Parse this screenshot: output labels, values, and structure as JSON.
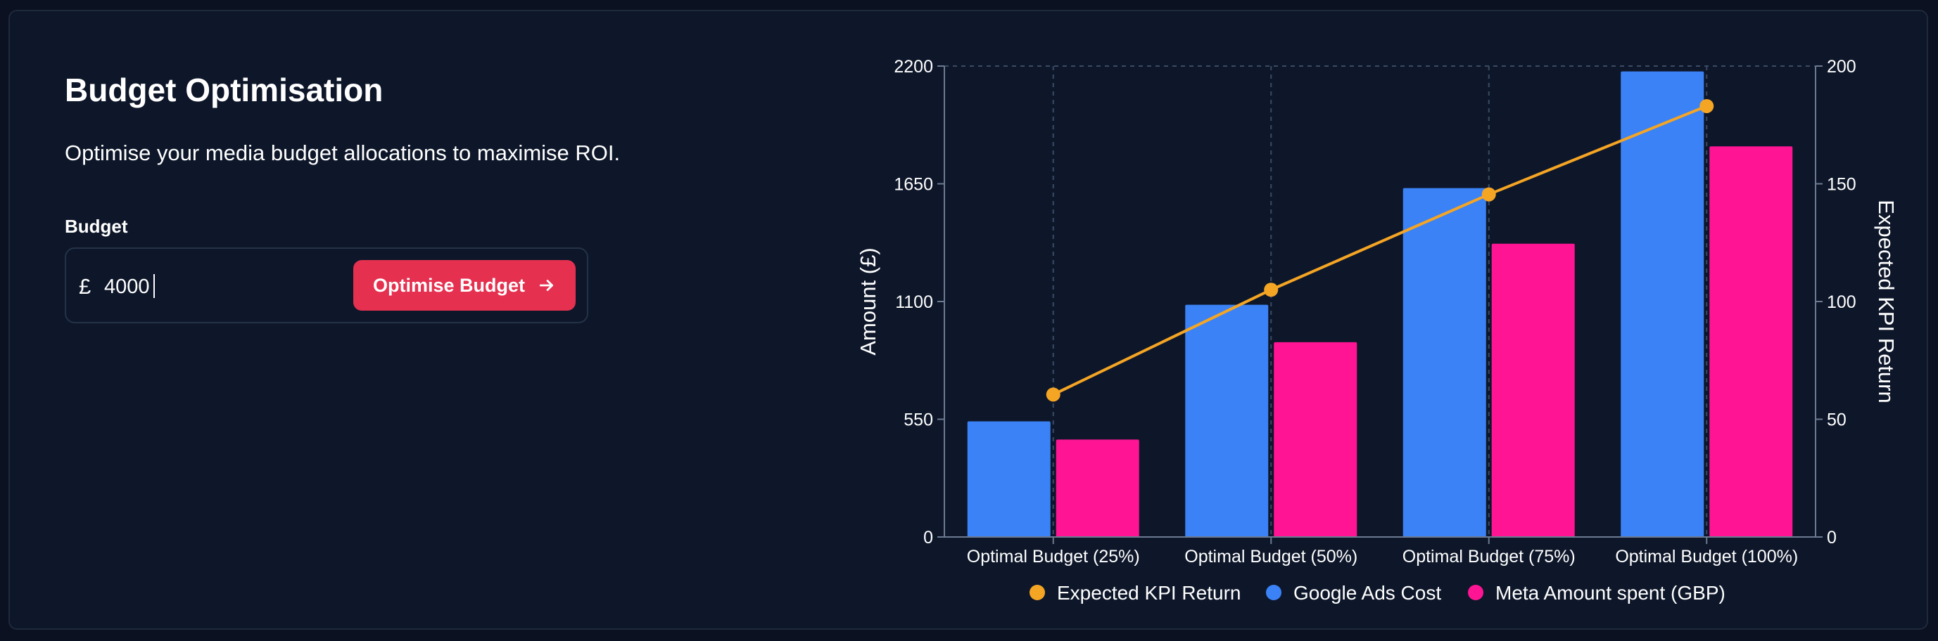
{
  "header": {
    "title": "Budget Optimisation",
    "subtitle": "Optimise your media budget allocations to maximise ROI."
  },
  "budget_form": {
    "label": "Budget",
    "currency_symbol": "£",
    "value": "4000",
    "button_label": "Optimise Budget",
    "button_icon": "arrow-right-icon"
  },
  "colors": {
    "background": "#0e172a",
    "accent_button": "#e5304f",
    "google": "#3b82f6",
    "meta": "#ff1493",
    "kpi": "#f5a524"
  },
  "chart_data": {
    "type": "bar",
    "categories": [
      "Optimal Budget (25%)",
      "Optimal Budget (50%)",
      "Optimal Budget (75%)",
      "Optimal Budget (100%)"
    ],
    "series": [
      {
        "name": "Google Ads Cost",
        "type": "bar",
        "axis": "left",
        "color": "#3b82f6",
        "values": [
          540,
          1085,
          1630,
          2175
        ]
      },
      {
        "name": "Meta Amount spent (GBP)",
        "type": "bar",
        "axis": "left",
        "color": "#ff1493",
        "values": [
          455,
          910,
          1370,
          1825
        ]
      },
      {
        "name": "Expected KPI Return",
        "type": "line",
        "axis": "right",
        "color": "#f5a524",
        "values": [
          60.5,
          105,
          145.5,
          183
        ]
      }
    ],
    "ylabel": "Amount (£)",
    "ylabel_right": "Expected KPI Return",
    "ylim": [
      0,
      2200
    ],
    "ylim_right": [
      0,
      200
    ],
    "yticks": [
      "0",
      "550",
      "1100",
      "1650",
      "2200"
    ],
    "yticks_right": [
      "0",
      "50",
      "100",
      "150",
      "200"
    ],
    "legend": [
      "Expected KPI Return",
      "Google Ads Cost",
      "Meta Amount spent (GBP)"
    ],
    "legend_position": "bottom",
    "grid": "dashed vertical at categories, dashed top border"
  }
}
